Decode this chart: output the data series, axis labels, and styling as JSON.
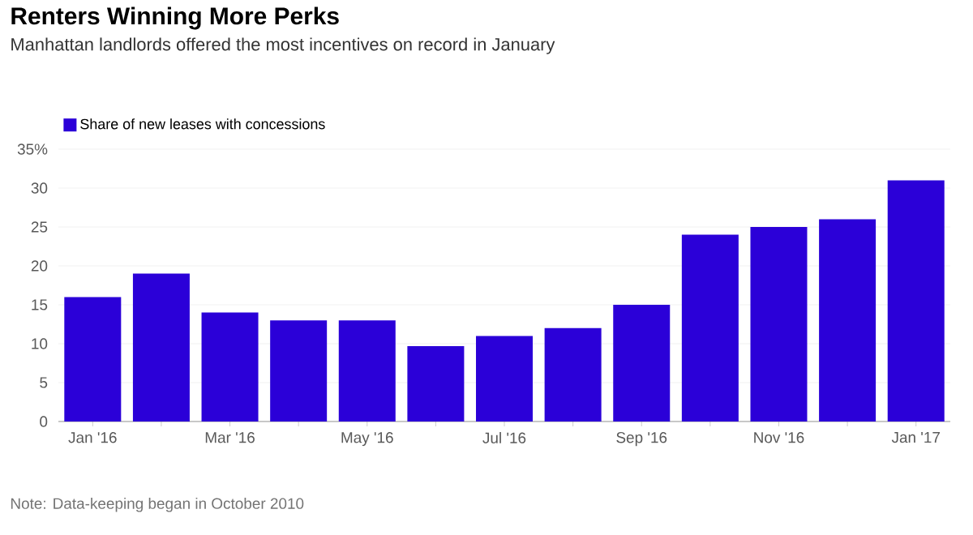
{
  "chart_data": {
    "type": "bar",
    "title": "Renters Winning More Perks",
    "subtitle": "Manhattan landlords offered the most incentives on record in January",
    "categories": [
      "Jan '16",
      null,
      "Mar '16",
      null,
      "May '16",
      null,
      "Jul '16",
      null,
      "Sep '16",
      null,
      "Nov '16",
      null,
      "Jan '17"
    ],
    "series": [
      {
        "name": "Share of new leases with concessions",
        "color": "#2b00d8",
        "values": [
          16,
          19,
          14,
          13,
          13,
          9.7,
          11,
          12,
          15,
          24,
          25,
          26,
          31
        ]
      }
    ],
    "ylim": [
      0,
      35
    ],
    "yticks": [
      0,
      5,
      10,
      15,
      20,
      25,
      30,
      {
        "value": 35,
        "label": "35%"
      }
    ],
    "grid": "y",
    "legend": "top left",
    "annotations": [
      "Note: Data-keeping began in October 2010"
    ]
  }
}
